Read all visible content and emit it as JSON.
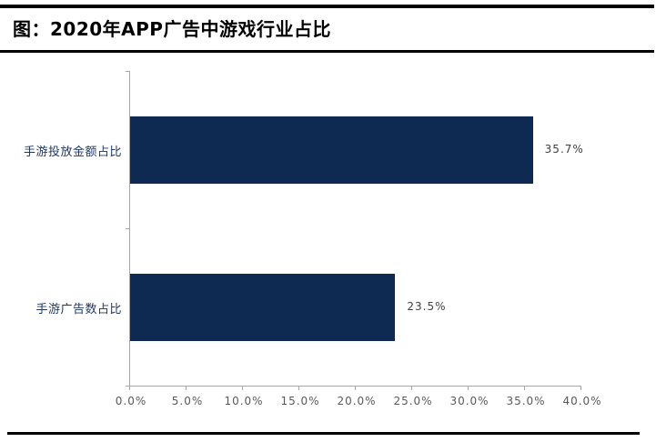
{
  "header": {
    "title": "图：2020年APP广告中游戏行业占比"
  },
  "chart_data": {
    "type": "bar",
    "orientation": "horizontal",
    "title": "2020年APP广告中游戏行业占比",
    "categories": [
      "手游投放金额占比",
      "手游广告数占比"
    ],
    "values": [
      35.7,
      23.5
    ],
    "value_labels": [
      "35.7%",
      "23.5%"
    ],
    "xlim": [
      0,
      40
    ],
    "x_tick_values": [
      0,
      5,
      10,
      15,
      20,
      25,
      30,
      35,
      40
    ],
    "x_tick_labels": [
      "0.0%",
      "5.0%",
      "10.0%",
      "15.0%",
      "20.0%",
      "25.0%",
      "30.0%",
      "35.0%",
      "40.0%"
    ],
    "xlabel": "",
    "ylabel": "",
    "grid": false,
    "legend": false,
    "bar_color": "#0f2a52",
    "axis_color": "#a6a6a6",
    "category_label_color": "#1f3864",
    "data_label_color": "#3f3f3f",
    "tick_label_color": "#595959"
  }
}
